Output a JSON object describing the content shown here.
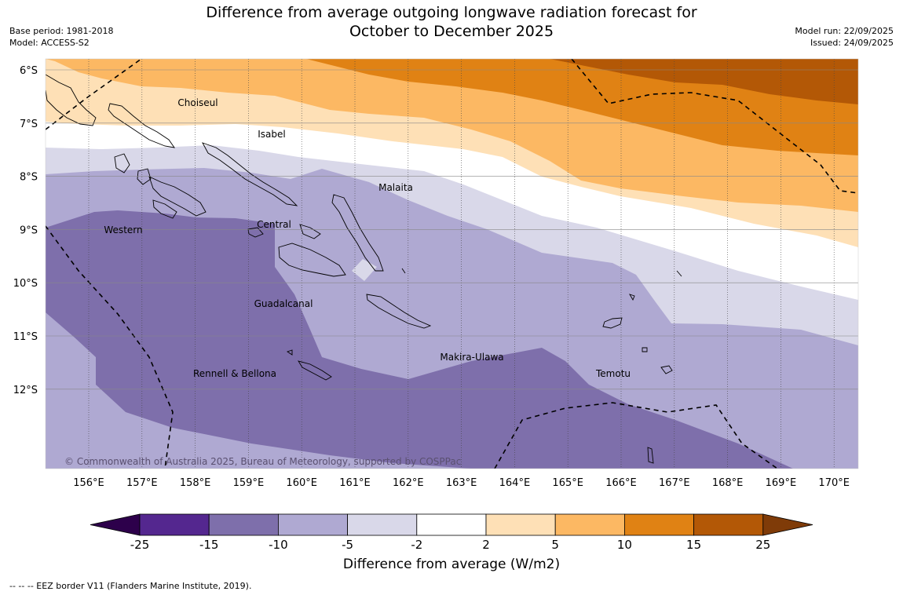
{
  "header": {
    "title_line1": "Difference from average outgoing longwave radiation forecast for",
    "title_line2": "October to December 2025",
    "base_period": "Base period: 1981-2018",
    "model": "Model: ACCESS-S2",
    "model_run": "Model run: 22/09/2025",
    "issued": "Issued: 24/09/2025"
  },
  "map": {
    "lat_labels": [
      "6°S",
      "7°S",
      "8°S",
      "9°S",
      "10°S",
      "11°S",
      "12°S"
    ],
    "lon_labels": [
      "156°E",
      "157°E",
      "158°E",
      "159°E",
      "160°E",
      "161°E",
      "162°E",
      "163°E",
      "164°E",
      "165°E",
      "166°E",
      "167°E",
      "168°E",
      "169°E",
      "170°E"
    ],
    "regions": [
      "Choiseul",
      "Isabel",
      "Malaita",
      "Western",
      "Central",
      "Guadalcanal",
      "Makira-Ulawa",
      "Rennell & Bellona",
      "Temotu"
    ],
    "copyright": "© Commonwealth of Australia 2025, Bureau of Meteorology, supported by COSPPac"
  },
  "colorbar": {
    "ticks": [
      "-25",
      "-15",
      "-10",
      "-5",
      "-2",
      "2",
      "5",
      "10",
      "15",
      "25"
    ],
    "colors": [
      "#54278f",
      "#7e6fab",
      "#afa9d2",
      "#d9d8e9",
      "#ffffff",
      "#fee0b6",
      "#fcb863",
      "#e08214",
      "#b35806"
    ],
    "under_color": "#2d004b",
    "over_color": "#7f3b08",
    "label": "Difference from average (W/m2)"
  },
  "footnote": "--  --  -- EEZ border V11 (Flanders Marine Institute, 2019)."
}
